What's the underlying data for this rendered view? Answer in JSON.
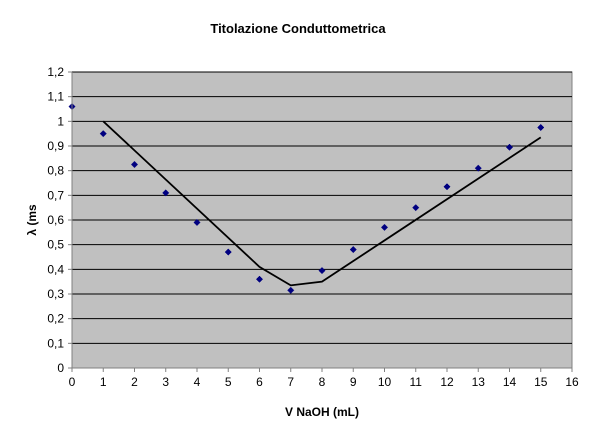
{
  "chart_data": {
    "type": "scatter",
    "title": "Titolazione Conduttometrica",
    "xlabel": "V NaOH (mL)",
    "ylabel": "λ (ms",
    "xlim": [
      0,
      16
    ],
    "ylim": [
      0,
      1.2
    ],
    "xticks": [
      0,
      1,
      2,
      3,
      4,
      5,
      6,
      7,
      8,
      9,
      10,
      11,
      12,
      13,
      14,
      15,
      16
    ],
    "yticks": [
      0,
      0.1,
      0.2,
      0.3,
      0.4,
      0.5,
      0.6,
      0.7,
      0.8,
      0.9,
      1,
      1.1,
      1.2
    ],
    "ytick_labels": [
      "0",
      "0,1",
      "0,2",
      "0,3",
      "0,4",
      "0,5",
      "0,6",
      "0,7",
      "0,8",
      "0,9",
      "1",
      "1,1",
      "1,2"
    ],
    "grid": "horizontal",
    "plot_background": "#c0c0c0",
    "series": [
      {
        "kind": "markers",
        "color": "#000080",
        "x": [
          0,
          1,
          2,
          3,
          4,
          5,
          6,
          7,
          8,
          9,
          10,
          11,
          12,
          13,
          14,
          15
        ],
        "y": [
          1.06,
          0.95,
          0.825,
          0.71,
          0.59,
          0.47,
          0.36,
          0.315,
          0.395,
          0.48,
          0.57,
          0.65,
          0.735,
          0.81,
          0.895,
          0.975
        ]
      },
      {
        "kind": "line",
        "color": "#000000",
        "x": [
          1,
          6,
          7,
          8,
          15
        ],
        "y": [
          1.0,
          0.41,
          0.335,
          0.35,
          0.935
        ]
      }
    ]
  }
}
